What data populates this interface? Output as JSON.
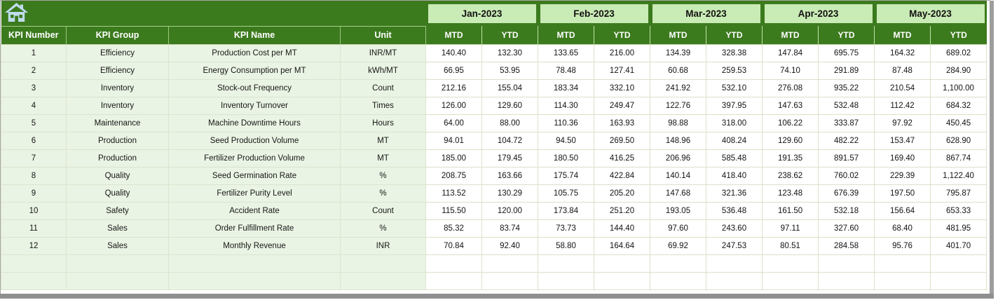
{
  "table": {
    "left_columns": [
      "KPI Number",
      "KPI Group",
      "KPI Name",
      "Unit"
    ],
    "months": [
      "Jan-2023",
      "Feb-2023",
      "Mar-2023",
      "Apr-2023",
      "May-2023"
    ],
    "sub_columns": [
      "MTD",
      "YTD"
    ],
    "rows": [
      {
        "number": "1",
        "group": "Efficiency",
        "name": "Production Cost per MT",
        "unit": "INR/MT",
        "values": [
          "140.40",
          "132.30",
          "133.65",
          "216.00",
          "134.39",
          "328.38",
          "147.84",
          "695.75",
          "164.32",
          "689.02"
        ]
      },
      {
        "number": "2",
        "group": "Efficiency",
        "name": "Energy Consumption per MT",
        "unit": "kWh/MT",
        "values": [
          "66.95",
          "53.95",
          "78.48",
          "127.41",
          "60.68",
          "259.53",
          "74.10",
          "291.89",
          "87.48",
          "284.90"
        ]
      },
      {
        "number": "3",
        "group": "Inventory",
        "name": "Stock-out Frequency",
        "unit": "Count",
        "values": [
          "212.16",
          "155.04",
          "183.34",
          "332.10",
          "241.92",
          "532.10",
          "276.08",
          "935.22",
          "210.54",
          "1,100.00"
        ]
      },
      {
        "number": "4",
        "group": "Inventory",
        "name": "Inventory Turnover",
        "unit": "Times",
        "values": [
          "126.00",
          "129.60",
          "114.30",
          "249.47",
          "122.76",
          "397.95",
          "147.63",
          "532.48",
          "112.42",
          "684.32"
        ]
      },
      {
        "number": "5",
        "group": "Maintenance",
        "name": "Machine Downtime Hours",
        "unit": "Hours",
        "values": [
          "64.00",
          "88.00",
          "110.36",
          "163.93",
          "98.88",
          "318.00",
          "106.22",
          "333.87",
          "97.92",
          "450.45"
        ]
      },
      {
        "number": "6",
        "group": "Production",
        "name": "Seed Production Volume",
        "unit": "MT",
        "values": [
          "94.01",
          "104.72",
          "94.50",
          "269.50",
          "148.96",
          "408.24",
          "129.60",
          "482.22",
          "153.47",
          "628.90"
        ]
      },
      {
        "number": "7",
        "group": "Production",
        "name": "Fertilizer Production Volume",
        "unit": "MT",
        "values": [
          "185.00",
          "179.45",
          "180.50",
          "416.25",
          "206.96",
          "585.48",
          "191.35",
          "891.57",
          "169.40",
          "867.74"
        ]
      },
      {
        "number": "8",
        "group": "Quality",
        "name": "Seed Germination Rate",
        "unit": "%",
        "values": [
          "208.75",
          "163.66",
          "175.74",
          "422.84",
          "140.14",
          "418.40",
          "238.62",
          "760.02",
          "229.39",
          "1,122.40"
        ]
      },
      {
        "number": "9",
        "group": "Quality",
        "name": "Fertilizer Purity Level",
        "unit": "%",
        "values": [
          "113.52",
          "130.29",
          "105.75",
          "205.20",
          "147.68",
          "321.36",
          "123.48",
          "676.39",
          "197.50",
          "795.87"
        ]
      },
      {
        "number": "10",
        "group": "Safety",
        "name": "Accident Rate",
        "unit": "Count",
        "values": [
          "115.50",
          "120.00",
          "173.84",
          "251.20",
          "193.05",
          "536.48",
          "161.50",
          "532.18",
          "156.64",
          "653.33"
        ]
      },
      {
        "number": "11",
        "group": "Sales",
        "name": "Order Fulfillment Rate",
        "unit": "%",
        "values": [
          "85.32",
          "83.74",
          "73.73",
          "144.40",
          "97.60",
          "243.60",
          "97.11",
          "327.60",
          "68.40",
          "481.95"
        ]
      },
      {
        "number": "12",
        "group": "Sales",
        "name": "Monthly Revenue",
        "unit": "INR",
        "values": [
          "70.84",
          "92.40",
          "58.80",
          "164.64",
          "69.92",
          "247.53",
          "80.51",
          "284.58",
          "95.76",
          "401.70"
        ]
      }
    ],
    "empty_row_count": 2
  },
  "icons": {
    "home": "home-icon"
  },
  "colors": {
    "header_dark_green": "#3c7a1e",
    "month_light_green": "#c9ebb5",
    "row_light_green": "#eaf4e4",
    "gridline_green": "#dae1c8",
    "header_text": "#ffffff",
    "home_icon_blue": "#bfdcee",
    "frame_gray": "#8f8f8f"
  }
}
